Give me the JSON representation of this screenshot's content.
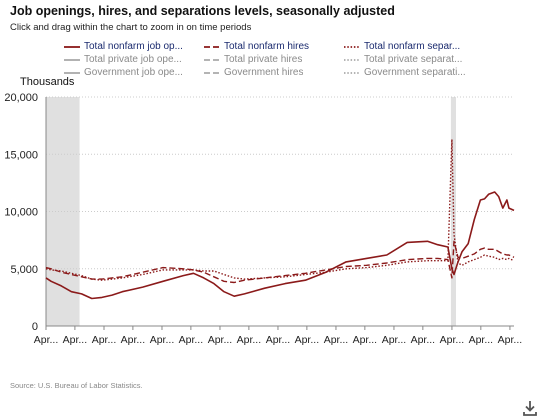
{
  "header": {
    "title": "Job openings, hires, and separations levels, seasonally adjusted",
    "subtitle": "Click and drag within the chart to zoom in on time periods"
  },
  "legend": {
    "rows": [
      [
        {
          "label": "Total nonfarm job op...",
          "style": "solid",
          "color": "#8b1a1a",
          "active": true
        },
        {
          "label": "Total nonfarm hires",
          "style": "dashed",
          "color": "#8b1a1a",
          "active": true
        },
        {
          "label": "Total nonfarm separ...",
          "style": "dotted",
          "color": "#8b1a1a",
          "active": true
        }
      ],
      [
        {
          "label": "Total private job ope...",
          "style": "solid",
          "color": "#aaaaaa",
          "active": false
        },
        {
          "label": "Total private hires",
          "style": "dashed",
          "color": "#aaaaaa",
          "active": false
        },
        {
          "label": "Total private separat...",
          "style": "dotted",
          "color": "#aaaaaa",
          "active": false
        }
      ],
      [
        {
          "label": "Government job ope...",
          "style": "solid",
          "color": "#aaaaaa",
          "active": false
        },
        {
          "label": "Government hires",
          "style": "dashed",
          "color": "#aaaaaa",
          "active": false
        },
        {
          "label": "Government separati...",
          "style": "dotted",
          "color": "#aaaaaa",
          "active": false
        }
      ]
    ]
  },
  "source": "Source: U.S. Bureau of Labor Statistics.",
  "download_icon": "download-icon",
  "colors": {
    "series": "#8b1a1a",
    "recession": "#e0e0e0",
    "grid": "#cccccc",
    "inactive": "#aaaaaa"
  },
  "chart_data": {
    "type": "line",
    "title": "Job openings, hires, and separations levels, seasonally adjusted",
    "ylabel": "Thousands",
    "ylim": [
      0,
      20000
    ],
    "xlim": [
      2000.25,
      2023.25
    ],
    "yticks": [
      0,
      5000,
      10000,
      15000,
      20000
    ],
    "ytick_labels": [
      "0",
      "5,000",
      "10,000",
      "15,000",
      "20,000"
    ],
    "x_tick_positions": [
      2000.25,
      2001.67,
      2003.1,
      2004.52,
      2005.95,
      2007.37,
      2008.8,
      2010.22,
      2011.65,
      2013.07,
      2014.5,
      2015.92,
      2017.35,
      2018.77,
      2020.2,
      2021.62,
      2023.05
    ],
    "x_tick_label": "Apr...",
    "grid": "horizontal",
    "shaded_periods": [
      [
        2000.25,
        2001.9
      ],
      [
        2020.15,
        2020.4
      ]
    ],
    "series": [
      {
        "name": "Total nonfarm job op...",
        "style": "solid",
        "x": [
          2000.25,
          2000.5,
          2001.0,
          2001.5,
          2002.0,
          2002.5,
          2003.0,
          2003.5,
          2004.0,
          2005.0,
          2006.0,
          2007.0,
          2007.5,
          2008.0,
          2008.5,
          2009.0,
          2009.5,
          2010.0,
          2011.0,
          2012.0,
          2013.0,
          2014.0,
          2015.0,
          2016.0,
          2017.0,
          2018.0,
          2019.0,
          2019.5,
          2020.0,
          2020.2,
          2020.3,
          2020.5,
          2020.7,
          2021.0,
          2021.3,
          2021.6,
          2021.8,
          2022.0,
          2022.3,
          2022.5,
          2022.7,
          2022.9,
          2023.0,
          2023.25
        ],
        "values": [
          4200,
          3900,
          3500,
          3000,
          2800,
          2400,
          2500,
          2700,
          3000,
          3400,
          3900,
          4400,
          4600,
          4200,
          3700,
          3000,
          2600,
          2800,
          3300,
          3700,
          4000,
          4700,
          5600,
          5900,
          6200,
          7300,
          7400,
          7100,
          6900,
          5000,
          4500,
          5600,
          6500,
          7200,
          9300,
          11000,
          11100,
          11500,
          11700,
          11300,
          10300,
          11000,
          10300,
          10100
        ]
      },
      {
        "name": "Total nonfarm hires",
        "style": "dashed",
        "x": [
          2000.25,
          2000.5,
          2001.0,
          2001.5,
          2002.0,
          2002.5,
          2003.0,
          2003.5,
          2004.0,
          2005.0,
          2006.0,
          2007.0,
          2007.5,
          2008.0,
          2008.5,
          2009.0,
          2009.5,
          2010.0,
          2011.0,
          2012.0,
          2013.0,
          2014.0,
          2015.0,
          2016.0,
          2017.0,
          2018.0,
          2019.0,
          2019.5,
          2020.0,
          2020.2,
          2020.3,
          2020.5,
          2020.7,
          2021.0,
          2021.3,
          2021.6,
          2021.8,
          2022.0,
          2022.3,
          2022.5,
          2022.7,
          2022.9,
          2023.0,
          2023.25
        ],
        "values": [
          5100,
          5000,
          4700,
          4500,
          4300,
          4100,
          4100,
          4200,
          4300,
          4700,
          5100,
          5000,
          4900,
          4700,
          4300,
          3900,
          3800,
          4000,
          4200,
          4400,
          4600,
          4900,
          5200,
          5300,
          5500,
          5800,
          5900,
          5900,
          5800,
          4200,
          7400,
          6000,
          5900,
          6100,
          6300,
          6700,
          6800,
          6700,
          6700,
          6500,
          6300,
          6200,
          6200,
          6000
        ]
      },
      {
        "name": "Total nonfarm separ...",
        "style": "dotted",
        "x": [
          2000.25,
          2000.5,
          2001.0,
          2001.5,
          2002.0,
          2002.5,
          2003.0,
          2003.5,
          2004.0,
          2005.0,
          2006.0,
          2007.0,
          2007.5,
          2008.0,
          2008.5,
          2009.0,
          2009.5,
          2010.0,
          2011.0,
          2012.0,
          2013.0,
          2014.0,
          2015.0,
          2016.0,
          2017.0,
          2018.0,
          2019.0,
          2019.5,
          2020.0,
          2020.2,
          2020.3,
          2020.5,
          2020.7,
          2021.0,
          2021.3,
          2021.6,
          2021.8,
          2022.0,
          2022.3,
          2022.5,
          2022.7,
          2022.9,
          2023.0,
          2023.25
        ],
        "values": [
          5000,
          4900,
          4800,
          4600,
          4400,
          4100,
          4000,
          4100,
          4200,
          4500,
          4900,
          4900,
          4900,
          4800,
          4800,
          4500,
          4200,
          4100,
          4200,
          4300,
          4500,
          4700,
          5000,
          5100,
          5300,
          5600,
          5700,
          5700,
          5700,
          16300,
          8000,
          5500,
          5300,
          5600,
          5800,
          6000,
          6200,
          6100,
          6000,
          5800,
          5900,
          5800,
          5900,
          5700
        ]
      }
    ]
  }
}
